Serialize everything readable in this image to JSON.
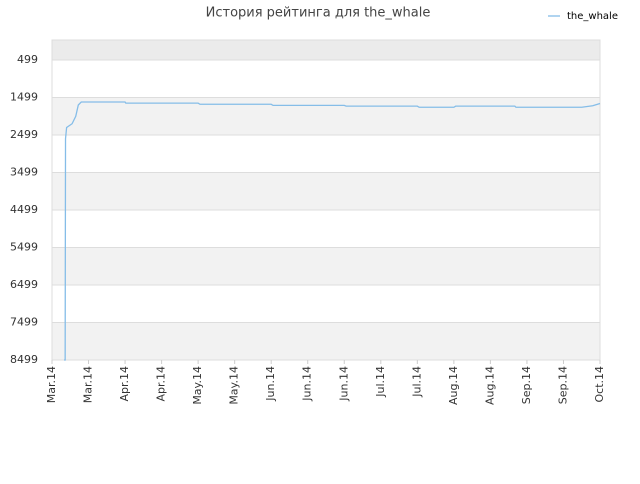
{
  "chart_data": {
    "type": "line",
    "title": "История рейтинга для the_whale",
    "series": [
      {
        "name": "the_whale",
        "color": "#85bde8",
        "x": [
          0.33,
          0.36,
          0.37,
          0.4,
          0.55,
          0.65,
          0.72,
          0.8,
          2.0,
          2.02,
          4.0,
          4.05,
          6.0,
          6.05,
          8.0,
          8.05,
          10.0,
          10.05,
          11.0,
          11.05,
          12.67,
          12.7,
          14.5,
          14.8,
          15
        ],
        "values": [
          8499,
          8499,
          2600,
          2299,
          2199,
          1999,
          1699,
          1620,
          1620,
          1650,
          1650,
          1680,
          1680,
          1710,
          1710,
          1730,
          1730,
          1760,
          1760,
          1730,
          1730,
          1760,
          1760,
          1720,
          1660
        ]
      }
    ],
    "ylim": [
      8499,
      -34
    ],
    "yticks": [
      499,
      1499,
      2499,
      3499,
      4499,
      5499,
      6499,
      7499,
      8499
    ],
    "xlim": [
      0,
      15
    ],
    "xticks": [
      {
        "value": 0,
        "label": "Mar.14"
      },
      {
        "value": 1,
        "label": "Mar.14"
      },
      {
        "value": 2,
        "label": "Apr.14"
      },
      {
        "value": 3,
        "label": "Apr.14"
      },
      {
        "value": 4,
        "label": "May.14"
      },
      {
        "value": 5,
        "label": "May.14"
      },
      {
        "value": 6,
        "label": "Jun.14"
      },
      {
        "value": 7,
        "label": "Jun.14"
      },
      {
        "value": 8,
        "label": "Jun.14"
      },
      {
        "value": 9,
        "label": "Jul.14"
      },
      {
        "value": 10,
        "label": "Jul.14"
      },
      {
        "value": 11,
        "label": "Aug.14"
      },
      {
        "value": 12,
        "label": "Aug.14"
      },
      {
        "value": 13,
        "label": "Sep.14"
      },
      {
        "value": 14,
        "label": "Sep.14"
      },
      {
        "value": 15,
        "label": "Oct.14"
      }
    ],
    "grid": true,
    "legend": "top-right"
  }
}
